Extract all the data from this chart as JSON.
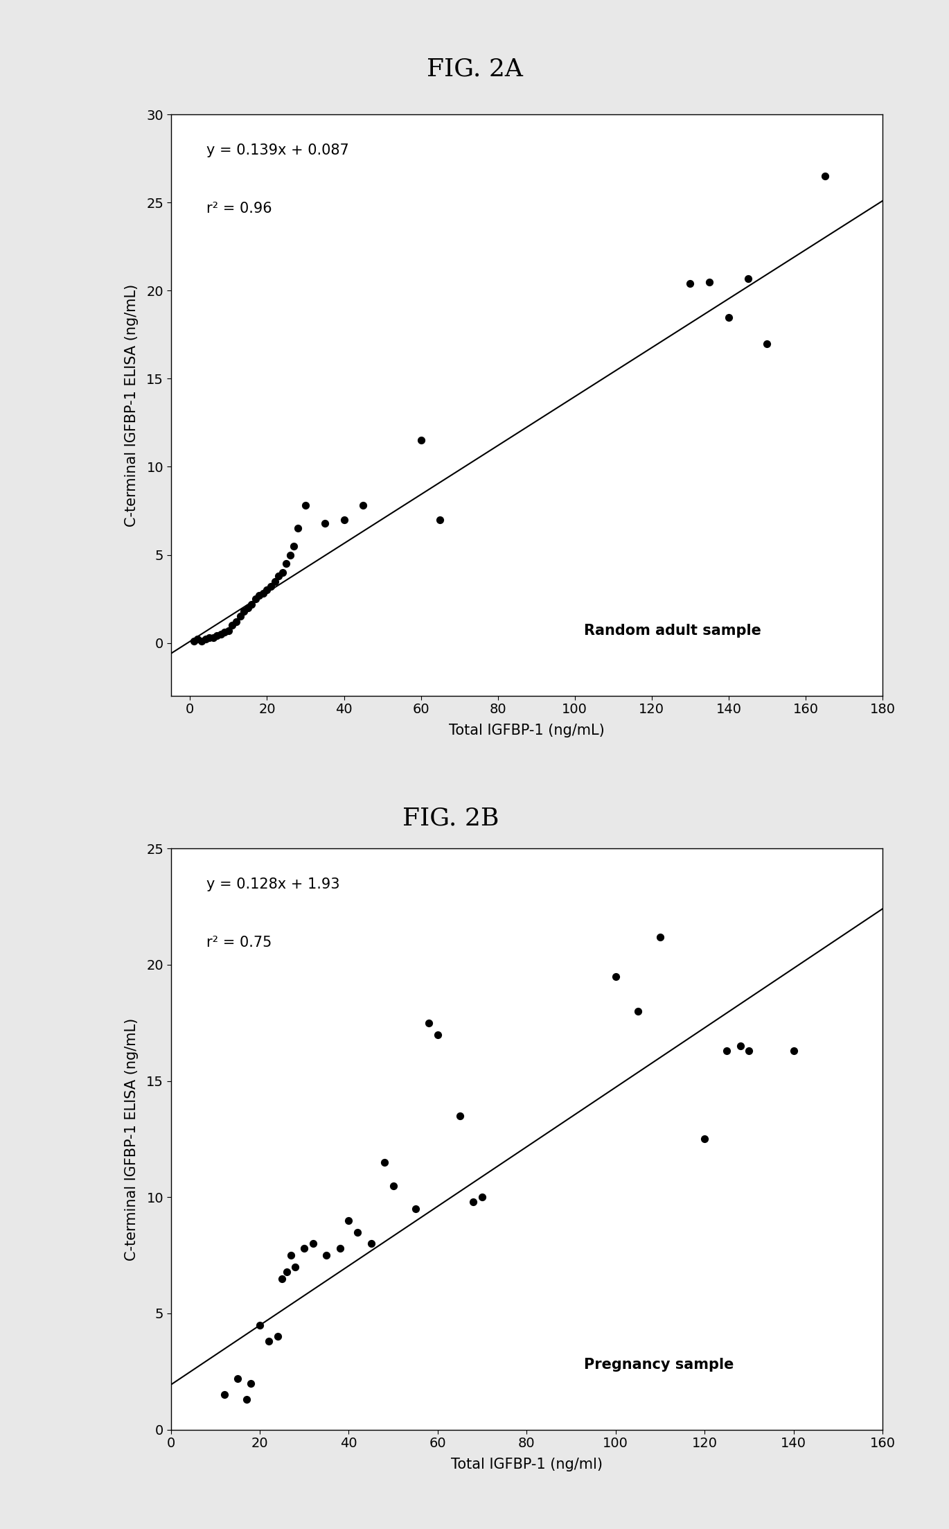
{
  "fig2a": {
    "title": "FIG. 2A",
    "scatter_x": [
      1,
      2,
      3,
      4,
      5,
      6,
      7,
      8,
      9,
      10,
      11,
      12,
      13,
      14,
      15,
      16,
      17,
      18,
      19,
      20,
      21,
      22,
      23,
      24,
      25,
      26,
      27,
      28,
      30,
      35,
      40,
      45,
      60,
      65,
      130,
      135,
      140,
      145,
      150,
      165
    ],
    "scatter_y": [
      0.1,
      0.2,
      0.1,
      0.2,
      0.3,
      0.3,
      0.4,
      0.5,
      0.6,
      0.7,
      1.0,
      1.2,
      1.5,
      1.8,
      2.0,
      2.2,
      2.5,
      2.7,
      2.8,
      3.0,
      3.2,
      3.5,
      3.8,
      4.0,
      4.5,
      5.0,
      5.5,
      6.5,
      7.8,
      6.8,
      7.0,
      7.8,
      11.5,
      7.0,
      20.4,
      20.5,
      18.5,
      20.7,
      17.0,
      26.5
    ],
    "slope": 0.139,
    "intercept": 0.087,
    "r2": 0.96,
    "equation": "y = 0.139x + 0.087",
    "r2_label": "r² = 0.96",
    "label": "Random adult sample",
    "xlabel": "Total IGFBP-1 (ng/mL)",
    "ylabel": "C-terminal IGFBP-1 ELISA (ng/mL)",
    "xlim": [
      -5,
      180
    ],
    "ylim": [
      -3,
      30
    ],
    "line_xrange": [
      -5,
      180
    ],
    "xticks": [
      0,
      20,
      40,
      60,
      80,
      100,
      120,
      140,
      160,
      180
    ],
    "yticks": [
      0,
      5,
      10,
      15,
      20,
      25,
      30
    ]
  },
  "fig2b": {
    "title": "FIG. 2B",
    "scatter_x": [
      12,
      15,
      17,
      18,
      20,
      22,
      24,
      25,
      26,
      27,
      28,
      30,
      32,
      35,
      38,
      40,
      42,
      45,
      48,
      50,
      55,
      58,
      60,
      65,
      68,
      70,
      100,
      105,
      110,
      120,
      125,
      128,
      130,
      140
    ],
    "scatter_y": [
      1.5,
      2.2,
      1.3,
      2.0,
      4.5,
      3.8,
      4.0,
      6.5,
      6.8,
      7.5,
      7.0,
      7.8,
      8.0,
      7.5,
      7.8,
      9.0,
      8.5,
      8.0,
      11.5,
      10.5,
      9.5,
      17.5,
      17.0,
      13.5,
      9.8,
      10.0,
      19.5,
      18.0,
      21.2,
      12.5,
      16.3,
      16.5,
      16.3,
      16.3
    ],
    "slope": 0.128,
    "intercept": 1.93,
    "r2": 0.75,
    "equation": "y = 0.128x + 1.93",
    "r2_label": "r² = 0.75",
    "label": "Pregnancy sample",
    "xlabel": "Total IGFBP-1 (ng/ml)",
    "ylabel": "C-terminal IGFBP-1 ELISA (ng/mL)",
    "xlim": [
      0,
      160
    ],
    "ylim": [
      0,
      25
    ],
    "line_xrange": [
      0,
      160
    ],
    "xticks": [
      0,
      20,
      40,
      60,
      80,
      100,
      120,
      140,
      160
    ],
    "yticks": [
      0,
      5,
      10,
      15,
      20,
      25
    ]
  },
  "background_color": "#e8e8e8",
  "plot_bg_color": "#ffffff",
  "scatter_color": "#000000",
  "line_color": "#000000",
  "scatter_size": 50,
  "title_fontsize": 26,
  "axis_label_fontsize": 15,
  "tick_fontsize": 14,
  "annotation_fontsize": 15,
  "label_fontsize": 15
}
